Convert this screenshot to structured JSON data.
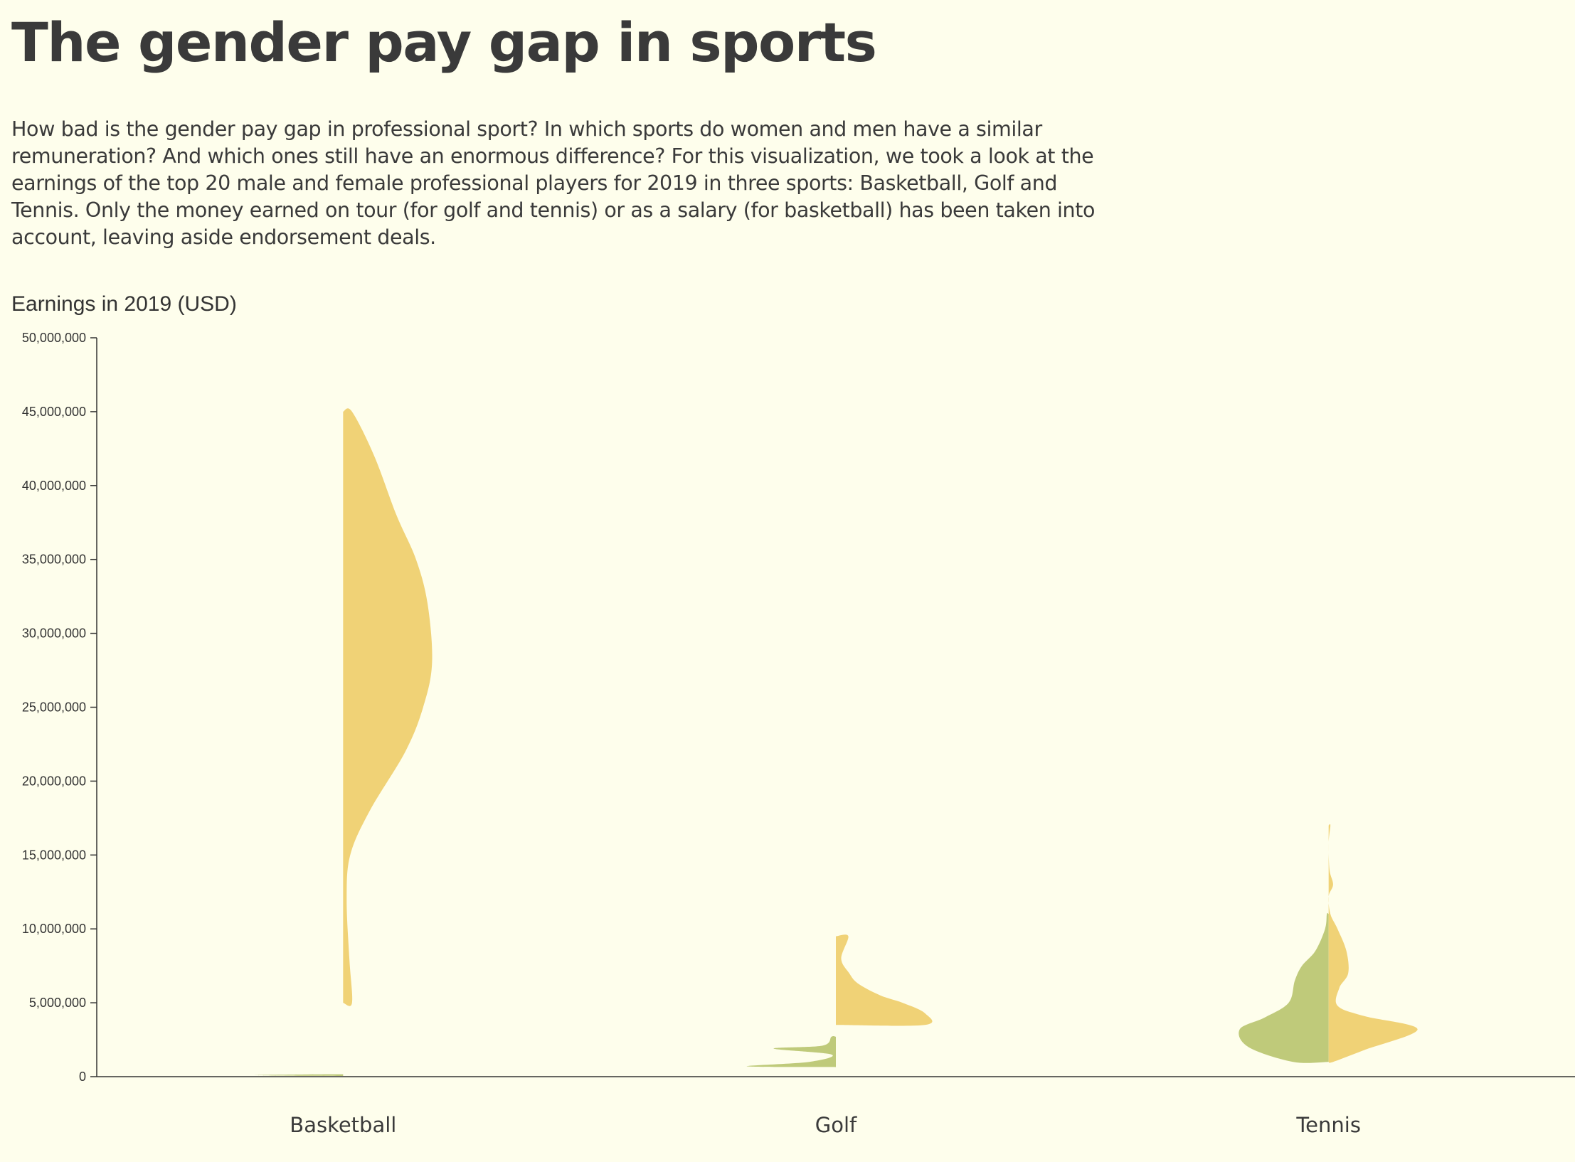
{
  "header": {
    "title": "The gender pay gap in sports",
    "intro": "How bad is the gender pay gap in professional sport? In which sports do women and men have a similar remuneration? And which ones still have an enormous difference? For this visualization, we took a look at the earnings of the top 20 male and female professional players for 2019 in three sports: Basketball, Golf and Tennis. Only the money earned on tour (for golf and tennis) or as a salary (for basketball) has been taken into account, leaving aside endorsement deals."
  },
  "chart_data": {
    "type": "violin",
    "ylabel": "Earnings in 2019 (USD)",
    "ylim": [
      0,
      50000000
    ],
    "yticks": [
      0,
      5000000,
      10000000,
      15000000,
      20000000,
      25000000,
      30000000,
      35000000,
      40000000,
      45000000,
      50000000
    ],
    "yticks_labels": [
      "0",
      "5,000,000",
      "10,000,000",
      "15,000,000",
      "20,000,000",
      "25,000,000",
      "30,000,000",
      "35,000,000",
      "40,000,000",
      "45,000,000",
      "50,000,000"
    ],
    "categories": [
      "Basketball",
      "Golf",
      "Tennis"
    ],
    "colors": {
      "women": "#bfca7a",
      "men": "#f0d276",
      "axis": "#333333",
      "background": "#fefeec"
    },
    "series": [
      {
        "key": "women",
        "side": "left",
        "density": [
          [
            [
              50000,
              0
            ],
            [
              60000,
              0.4
            ],
            [
              100000,
              1
            ],
            [
              150000,
              0.4
            ],
            [
              160000,
              0
            ]
          ],
          [
            [
              650000,
              0
            ],
            [
              700000,
              1
            ],
            [
              1000000,
              0.3
            ],
            [
              1500000,
              0.05
            ],
            [
              1900000,
              0.7
            ],
            [
              2100000,
              0.15
            ],
            [
              2700000,
              0.05
            ],
            [
              2700000,
              0
            ]
          ],
          [
            [
              1000000,
              0
            ],
            [
              1000000,
              0.4
            ],
            [
              2000000,
              0.9
            ],
            [
              3200000,
              1
            ],
            [
              4000000,
              0.72
            ],
            [
              5000000,
              0.45
            ],
            [
              6500000,
              0.38
            ],
            [
              7500000,
              0.3
            ],
            [
              8500000,
              0.15
            ],
            [
              10000000,
              0.04
            ],
            [
              11000000,
              0.02
            ],
            [
              11000000,
              0
            ]
          ]
        ]
      },
      {
        "key": "men",
        "side": "right",
        "density": [
          [
            [
              5000000,
              0
            ],
            [
              5000000,
              0.1
            ],
            [
              8000000,
              0.07
            ],
            [
              12000000,
              0.04
            ],
            [
              15000000,
              0.08
            ],
            [
              18000000,
              0.3
            ],
            [
              22000000,
              0.7
            ],
            [
              25000000,
              0.9
            ],
            [
              28000000,
              1
            ],
            [
              32000000,
              0.95
            ],
            [
              35000000,
              0.82
            ],
            [
              38000000,
              0.6
            ],
            [
              42000000,
              0.35
            ],
            [
              45000000,
              0.1
            ],
            [
              45000000,
              0
            ]
          ],
          [
            [
              3500000,
              0
            ],
            [
              3500000,
              1
            ],
            [
              4300000,
              1
            ],
            [
              5000000,
              0.75
            ],
            [
              5500000,
              0.5
            ],
            [
              6300000,
              0.25
            ],
            [
              7000000,
              0.15
            ],
            [
              8000000,
              0.06
            ],
            [
              9500000,
              0.14
            ],
            [
              9500000,
              0
            ]
          ],
          [
            [
              1000000,
              0
            ],
            [
              1000000,
              0.05
            ],
            [
              1800000,
              0.4
            ],
            [
              3200000,
              1
            ],
            [
              4100000,
              0.4
            ],
            [
              4800000,
              0.1
            ],
            [
              6000000,
              0.12
            ],
            [
              7000000,
              0.22
            ],
            [
              8500000,
              0.2
            ],
            [
              10000000,
              0.1
            ],
            [
              11000000,
              0.02
            ],
            [
              12200000,
              0
            ],
            [
              13000000,
              0.05
            ],
            [
              14000000,
              0.01
            ],
            [
              15800000,
              0
            ],
            [
              17000000,
              0.02
            ],
            [
              17000000,
              0
            ]
          ]
        ]
      }
    ]
  }
}
